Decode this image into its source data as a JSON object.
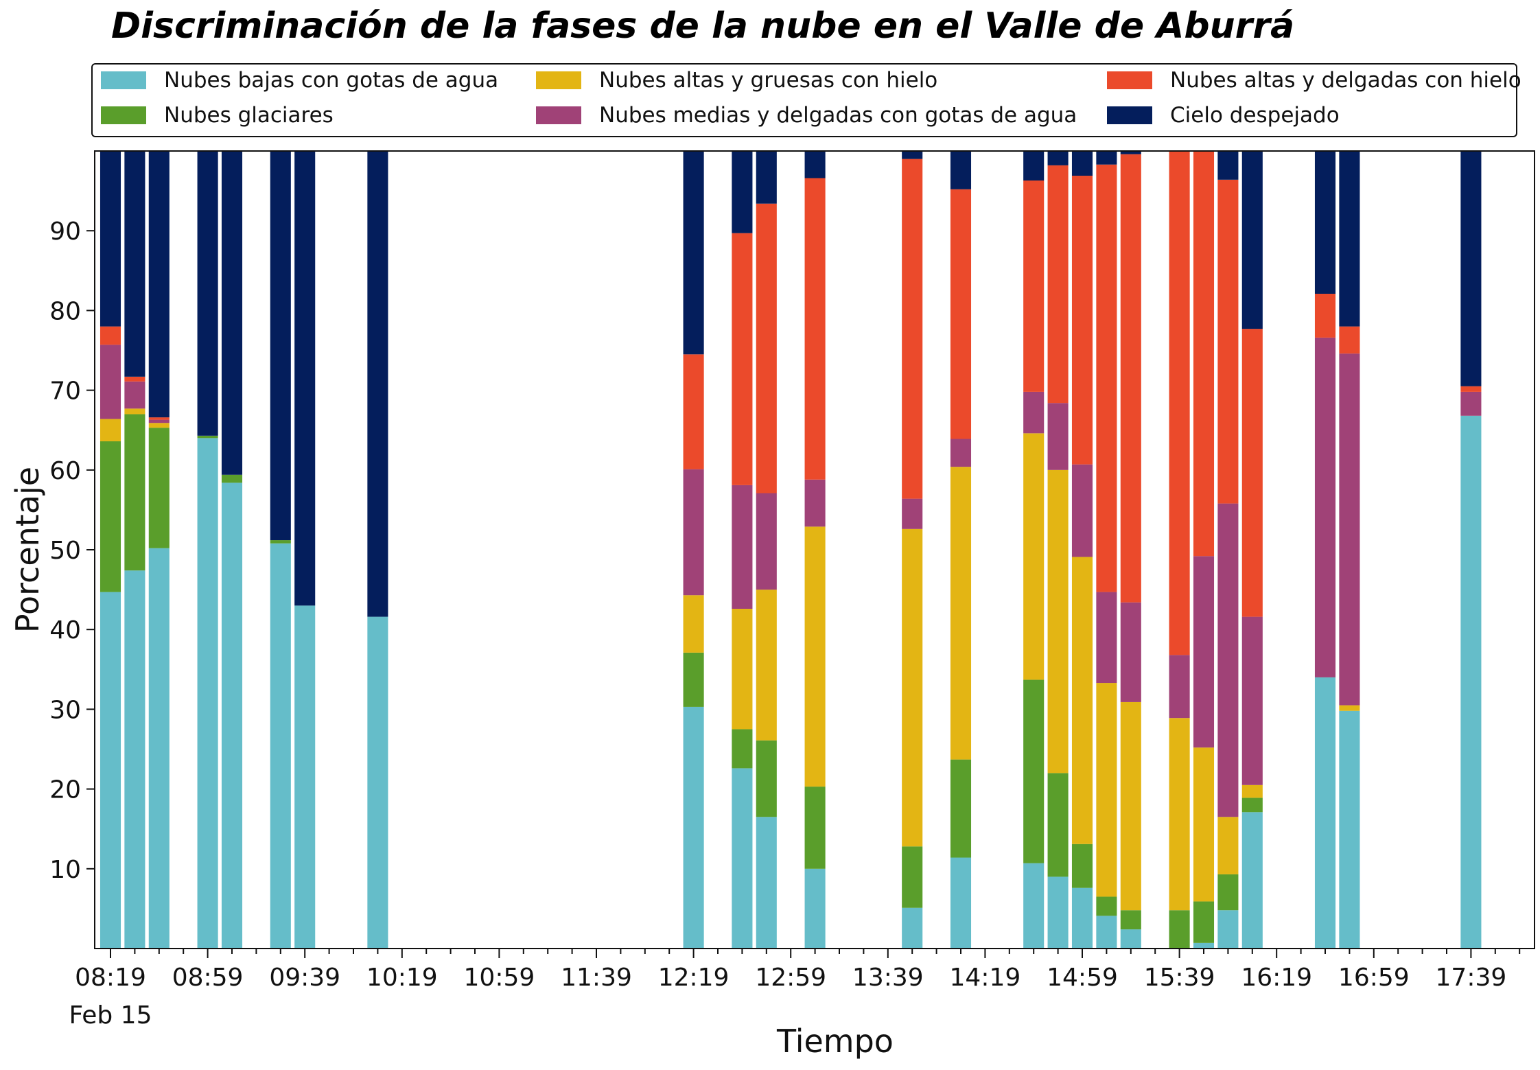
{
  "chart_data": {
    "type": "bar",
    "stacked": true,
    "title": "Discriminación de la fases de la nube en el Valle de Aburrá",
    "xlabel": "Tiempo",
    "ylabel": "Porcentaje",
    "ylim": [
      0,
      100
    ],
    "yticks": [
      10,
      20,
      30,
      40,
      50,
      60,
      70,
      80,
      90
    ],
    "x_time_range": [
      "08:19",
      "18:02"
    ],
    "xtick_labels": [
      "08:19",
      "08:59",
      "09:39",
      "10:19",
      "10:59",
      "11:39",
      "12:19",
      "12:59",
      "13:39",
      "14:19",
      "14:59",
      "15:39",
      "16:19",
      "16:59",
      "17:39"
    ],
    "date_label": "Feb 15",
    "legend_position": "top",
    "bar_width_minutes": 8.5,
    "x": [
      "08:19",
      "08:29",
      "08:39",
      "08:59",
      "09:09",
      "09:29",
      "09:39",
      "10:09",
      "12:19",
      "12:39",
      "12:49",
      "13:09",
      "13:49",
      "14:09",
      "14:39",
      "14:49",
      "14:59",
      "15:09",
      "15:19",
      "15:39",
      "15:49",
      "15:59",
      "16:09",
      "16:39",
      "16:49",
      "17:39"
    ],
    "series": [
      {
        "name": "Nubes bajas con gotas de agua",
        "color": "#65BDC9",
        "values": [
          44.7,
          47.4,
          50.2,
          64.0,
          58.4,
          50.8,
          43.0,
          41.6,
          30.3,
          22.6,
          16.5,
          10.0,
          5.1,
          11.4,
          10.7,
          9.0,
          7.6,
          4.1,
          2.4,
          0,
          0.7,
          4.8,
          17.1,
          34.0,
          29.8,
          66.8
        ]
      },
      {
        "name": "Nubes glaciares",
        "color": "#5A9E2B",
        "values": [
          18.9,
          19.6,
          15.1,
          0.3,
          1.0,
          0.4,
          0,
          0,
          6.8,
          4.9,
          9.6,
          10.3,
          7.7,
          12.3,
          23.0,
          13.0,
          5.5,
          2.4,
          2.4,
          4.8,
          5.2,
          4.5,
          1.8,
          0,
          0,
          0
        ]
      },
      {
        "name": "Nubes altas y gruesas con hielo",
        "color": "#E3B514",
        "values": [
          2.8,
          0.7,
          0.6,
          0,
          0,
          0,
          0,
          0,
          7.2,
          15.1,
          18.9,
          32.6,
          39.8,
          36.7,
          30.9,
          38.0,
          36.0,
          26.8,
          26.1,
          24.1,
          19.3,
          7.2,
          1.6,
          0,
          0.7,
          0
        ]
      },
      {
        "name": "Nubes medias y delgadas con gotas de agua",
        "color": "#A04277",
        "values": [
          9.3,
          3.4,
          0.4,
          0,
          0,
          0,
          0,
          0,
          15.8,
          15.5,
          12.1,
          5.9,
          3.8,
          3.5,
          5.2,
          8.4,
          11.6,
          11.4,
          12.5,
          7.9,
          24.0,
          39.3,
          21.1,
          42.6,
          44.1,
          3.0
        ]
      },
      {
        "name": "Nubes altas y delgadas con hielo",
        "color": "#EB4A2B",
        "values": [
          2.3,
          0.6,
          0.3,
          0,
          0,
          0,
          0,
          0,
          14.4,
          31.6,
          36.3,
          37.8,
          42.6,
          31.3,
          26.5,
          29.8,
          36.2,
          53.6,
          56.2,
          63.2,
          50.8,
          40.6,
          36.1,
          5.5,
          3.4,
          0.7
        ]
      },
      {
        "name": "Cielo despejado",
        "color": "#041E5C",
        "values": [
          22.0,
          28.3,
          33.4,
          35.7,
          40.6,
          48.8,
          57.0,
          58.4,
          25.5,
          10.3,
          6.6,
          3.4,
          1.0,
          4.8,
          3.7,
          1.8,
          3.1,
          1.7,
          0.4,
          0,
          0,
          3.6,
          22.3,
          17.9,
          22.0,
          29.5
        ]
      }
    ]
  }
}
